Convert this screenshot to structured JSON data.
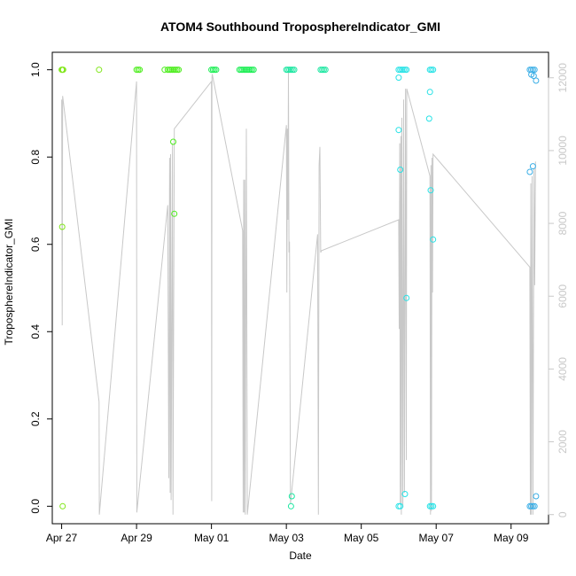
{
  "chart_data": {
    "type": "scatter",
    "title": "ATOM4 Southbound TroposphereIndicator_GMI",
    "xlabel": "Date",
    "ylabel": "TroposphereIndicator_GMI",
    "xlim": [
      "2023-04-26T18:00",
      "2023-05-10T00:00"
    ],
    "ylim": [
      -0.04,
      1.04
    ],
    "y2lim": [
      -250,
      12700
    ],
    "x_ticks": [
      {
        "label": "Apr 27",
        "date": "2023-04-27"
      },
      {
        "label": "Apr 29",
        "date": "2023-04-29"
      },
      {
        "label": "May 01",
        "date": "2023-05-01"
      },
      {
        "label": "May 03",
        "date": "2023-05-03"
      },
      {
        "label": "May 05",
        "date": "2023-05-05"
      },
      {
        "label": "May 07",
        "date": "2023-05-07"
      },
      {
        "label": "May 09",
        "date": "2023-05-09"
      }
    ],
    "y_ticks": [
      {
        "label": "0.0",
        "value": 0.0
      },
      {
        "label": "0.2",
        "value": 0.2
      },
      {
        "label": "0.4",
        "value": 0.4
      },
      {
        "label": "0.6",
        "value": 0.6
      },
      {
        "label": "0.8",
        "value": 0.8
      },
      {
        "label": "1.0",
        "value": 1.0
      }
    ],
    "y2_ticks": [
      {
        "label": "0",
        "value": 0
      },
      {
        "label": "2000",
        "value": 2000
      },
      {
        "label": "4000",
        "value": 4000
      },
      {
        "label": "6000",
        "value": 6000
      },
      {
        "label": "8000",
        "value": 8000
      },
      {
        "label": "10000",
        "value": 10000
      },
      {
        "label": "12000",
        "value": 12000
      }
    ],
    "line_color": "#c8c8c8",
    "secondary_line": [
      [
        "2023-04-27T00:00",
        11400
      ],
      [
        "2023-04-27T00:20",
        5200
      ],
      [
        "2023-04-27T00:40",
        11500
      ],
      [
        "2023-04-28T00:00",
        3100
      ],
      [
        "2023-04-28T00:10",
        0
      ],
      [
        "2023-04-29T00:00",
        11900
      ],
      [
        "2023-04-29T00:10",
        60
      ],
      [
        "2023-04-29T20:00",
        8500
      ],
      [
        "2023-04-29T20:40",
        1000
      ],
      [
        "2023-04-29T21:10",
        9800
      ],
      [
        "2023-04-29T21:30",
        600
      ],
      [
        "2023-04-29T21:50",
        9900
      ],
      [
        "2023-04-29T22:10",
        400
      ],
      [
        "2023-04-29T23:00",
        10200
      ],
      [
        "2023-04-29T23:20",
        0
      ],
      [
        "2023-04-30T00:10",
        10600
      ],
      [
        "2023-05-01T00:00",
        11900
      ],
      [
        "2023-05-01T00:10",
        370
      ],
      [
        "2023-05-01T00:20",
        12000
      ],
      [
        "2023-05-01T00:30",
        12100
      ],
      [
        "2023-05-01T20:00",
        7800
      ],
      [
        "2023-05-01T20:20",
        60
      ],
      [
        "2023-05-01T20:40",
        9200
      ],
      [
        "2023-05-01T21:00",
        60
      ],
      [
        "2023-05-01T21:20",
        9200
      ],
      [
        "2023-05-01T21:40",
        0
      ],
      [
        "2023-05-01T22:20",
        10600
      ],
      [
        "2023-05-01T23:00",
        0
      ],
      [
        "2023-05-03T00:00",
        10700
      ],
      [
        "2023-05-03T00:20",
        6100
      ],
      [
        "2023-05-03T00:40",
        10600
      ],
      [
        "2023-05-03T01:00",
        8100
      ],
      [
        "2023-05-03T01:20",
        12200
      ],
      [
        "2023-05-03T01:40",
        7200
      ],
      [
        "2023-05-03T02:00",
        7500
      ],
      [
        "2023-05-03T02:40",
        300
      ],
      [
        "2023-05-03T20:00",
        7700
      ],
      [
        "2023-05-03T20:30",
        0
      ],
      [
        "2023-05-03T21:00",
        9600
      ],
      [
        "2023-05-03T21:30",
        10100
      ],
      [
        "2023-05-03T22:00",
        7200
      ],
      [
        "2023-05-03T22:30",
        7250
      ],
      [
        "2023-05-06T00:00",
        8100
      ],
      [
        "2023-05-06T00:20",
        5100
      ],
      [
        "2023-05-06T00:40",
        10200
      ],
      [
        "2023-05-06T01:00",
        300
      ],
      [
        "2023-05-06T01:20",
        10400
      ],
      [
        "2023-05-06T01:40",
        0
      ],
      [
        "2023-05-06T02:00",
        10900
      ],
      [
        "2023-05-06T02:40",
        200
      ],
      [
        "2023-05-06T03:10",
        11400
      ],
      [
        "2023-05-06T03:40",
        600
      ],
      [
        "2023-05-06T04:20",
        11700
      ],
      [
        "2023-05-06T04:50",
        1500
      ],
      [
        "2023-05-06T05:10",
        11700
      ],
      [
        "2023-05-06T20:00",
        9300
      ],
      [
        "2023-05-06T20:20",
        0
      ],
      [
        "2023-05-06T20:40",
        9600
      ],
      [
        "2023-05-06T21:00",
        100
      ],
      [
        "2023-05-06T21:20",
        9800
      ],
      [
        "2023-05-06T21:40",
        6100
      ],
      [
        "2023-05-06T22:00",
        9900
      ],
      [
        "2023-05-09T12:00",
        6800
      ],
      [
        "2023-05-09T12:20",
        0
      ],
      [
        "2023-05-09T12:40",
        9100
      ],
      [
        "2023-05-09T13:00",
        0
      ],
      [
        "2023-05-09T13:30",
        9300
      ],
      [
        "2023-05-09T14:00",
        0
      ],
      [
        "2023-05-09T14:40",
        9500
      ],
      [
        "2023-05-09T15:10",
        6300
      ],
      [
        "2023-05-09T15:40",
        9700
      ]
    ],
    "series": [
      {
        "color": "#80e61a",
        "points": [
          [
            "2023-04-27T00:00",
            1.0
          ],
          [
            "2023-04-27T00:30",
            1.0
          ],
          [
            "2023-04-27T01:00",
            1.0
          ],
          [
            "2023-04-27T00:20",
            0.64
          ],
          [
            "2023-04-27T00:40",
            0.0
          ],
          [
            "2023-04-28T00:00",
            1.0
          ]
        ]
      },
      {
        "color": "#4ded1d",
        "points": [
          [
            "2023-04-29T00:00",
            1.0
          ],
          [
            "2023-04-29T01:00",
            1.0
          ],
          [
            "2023-04-29T02:00",
            1.0
          ],
          [
            "2023-04-29T18:00",
            1.0
          ],
          [
            "2023-04-29T20:00",
            1.0
          ],
          [
            "2023-04-29T21:00",
            1.0
          ],
          [
            "2023-04-29T22:00",
            1.0
          ],
          [
            "2023-04-29T23:00",
            1.0
          ],
          [
            "2023-04-30T00:00",
            1.0
          ],
          [
            "2023-04-30T01:00",
            1.0
          ],
          [
            "2023-04-30T02:00",
            1.0
          ],
          [
            "2023-04-30T03:00",
            1.0
          ],
          [
            "2023-04-29T23:30",
            0.835
          ],
          [
            "2023-04-30T00:10",
            0.67
          ]
        ]
      },
      {
        "color": "#1aee52",
        "points": [
          [
            "2023-05-01T00:00",
            1.0
          ],
          [
            "2023-05-01T01:00",
            1.0
          ],
          [
            "2023-05-01T02:00",
            1.0
          ],
          [
            "2023-05-01T03:00",
            1.0
          ],
          [
            "2023-05-01T18:00",
            1.0
          ],
          [
            "2023-05-01T19:00",
            1.0
          ],
          [
            "2023-05-01T20:00",
            1.0
          ],
          [
            "2023-05-01T21:00",
            1.0
          ],
          [
            "2023-05-01T22:00",
            1.0
          ],
          [
            "2023-05-01T23:00",
            1.0
          ],
          [
            "2023-05-02T00:00",
            1.0
          ],
          [
            "2023-05-02T01:00",
            1.0
          ],
          [
            "2023-05-02T02:00",
            1.0
          ],
          [
            "2023-05-02T03:00",
            1.0
          ]
        ]
      },
      {
        "color": "#1ae6a0",
        "points": [
          [
            "2023-05-03T00:00",
            1.0
          ],
          [
            "2023-05-03T01:00",
            1.0
          ],
          [
            "2023-05-03T02:00",
            1.0
          ],
          [
            "2023-05-03T03:00",
            1.0
          ],
          [
            "2023-05-03T04:00",
            1.0
          ],
          [
            "2023-05-03T05:00",
            1.0
          ],
          [
            "2023-05-03T22:00",
            1.0
          ],
          [
            "2023-05-03T23:00",
            1.0
          ],
          [
            "2023-05-04T00:00",
            1.0
          ],
          [
            "2023-05-04T01:00",
            1.0
          ],
          [
            "2023-05-03T03:30",
            0.023
          ],
          [
            "2023-05-03T03:00",
            0.0
          ]
        ]
      },
      {
        "color": "#26e2e6",
        "points": [
          [
            "2023-05-06T00:00",
            1.0
          ],
          [
            "2023-05-06T01:00",
            1.0
          ],
          [
            "2023-05-06T02:00",
            1.0
          ],
          [
            "2023-05-06T03:00",
            1.0
          ],
          [
            "2023-05-06T04:00",
            1.0
          ],
          [
            "2023-05-06T05:00",
            1.0
          ],
          [
            "2023-05-06T00:00",
            0.982
          ],
          [
            "2023-05-06T00:00",
            0.862
          ],
          [
            "2023-05-06T01:00",
            0.771
          ],
          [
            "2023-05-06T05:00",
            0.477
          ],
          [
            "2023-05-06T04:00",
            0.028
          ],
          [
            "2023-05-06T00:00",
            0.0
          ],
          [
            "2023-05-06T01:00",
            0.0
          ],
          [
            "2023-05-06T20:00",
            1.0
          ],
          [
            "2023-05-06T21:00",
            1.0
          ],
          [
            "2023-05-06T22:00",
            1.0
          ],
          [
            "2023-05-06T20:00",
            0.949
          ],
          [
            "2023-05-06T19:30",
            0.888
          ],
          [
            "2023-05-06T20:30",
            0.724
          ],
          [
            "2023-05-06T22:00",
            0.611
          ],
          [
            "2023-05-06T20:00",
            0.0
          ],
          [
            "2023-05-06T21:00",
            0.0
          ],
          [
            "2023-05-06T22:00",
            0.0
          ]
        ]
      },
      {
        "color": "#3aaee6",
        "points": [
          [
            "2023-05-09T12:00",
            1.0
          ],
          [
            "2023-05-09T13:00",
            1.0
          ],
          [
            "2023-05-09T14:00",
            1.0
          ],
          [
            "2023-05-09T15:00",
            1.0
          ],
          [
            "2023-05-09T13:00",
            0.989
          ],
          [
            "2023-05-09T14:30",
            0.986
          ],
          [
            "2023-05-09T16:00",
            0.975
          ],
          [
            "2023-05-09T12:00",
            0.766
          ],
          [
            "2023-05-09T14:00",
            0.779
          ],
          [
            "2023-05-09T12:00",
            0.0
          ],
          [
            "2023-05-09T13:00",
            0.0
          ],
          [
            "2023-05-09T14:00",
            0.0
          ],
          [
            "2023-05-09T15:00",
            0.0
          ],
          [
            "2023-05-09T16:00",
            0.023
          ]
        ]
      }
    ]
  }
}
